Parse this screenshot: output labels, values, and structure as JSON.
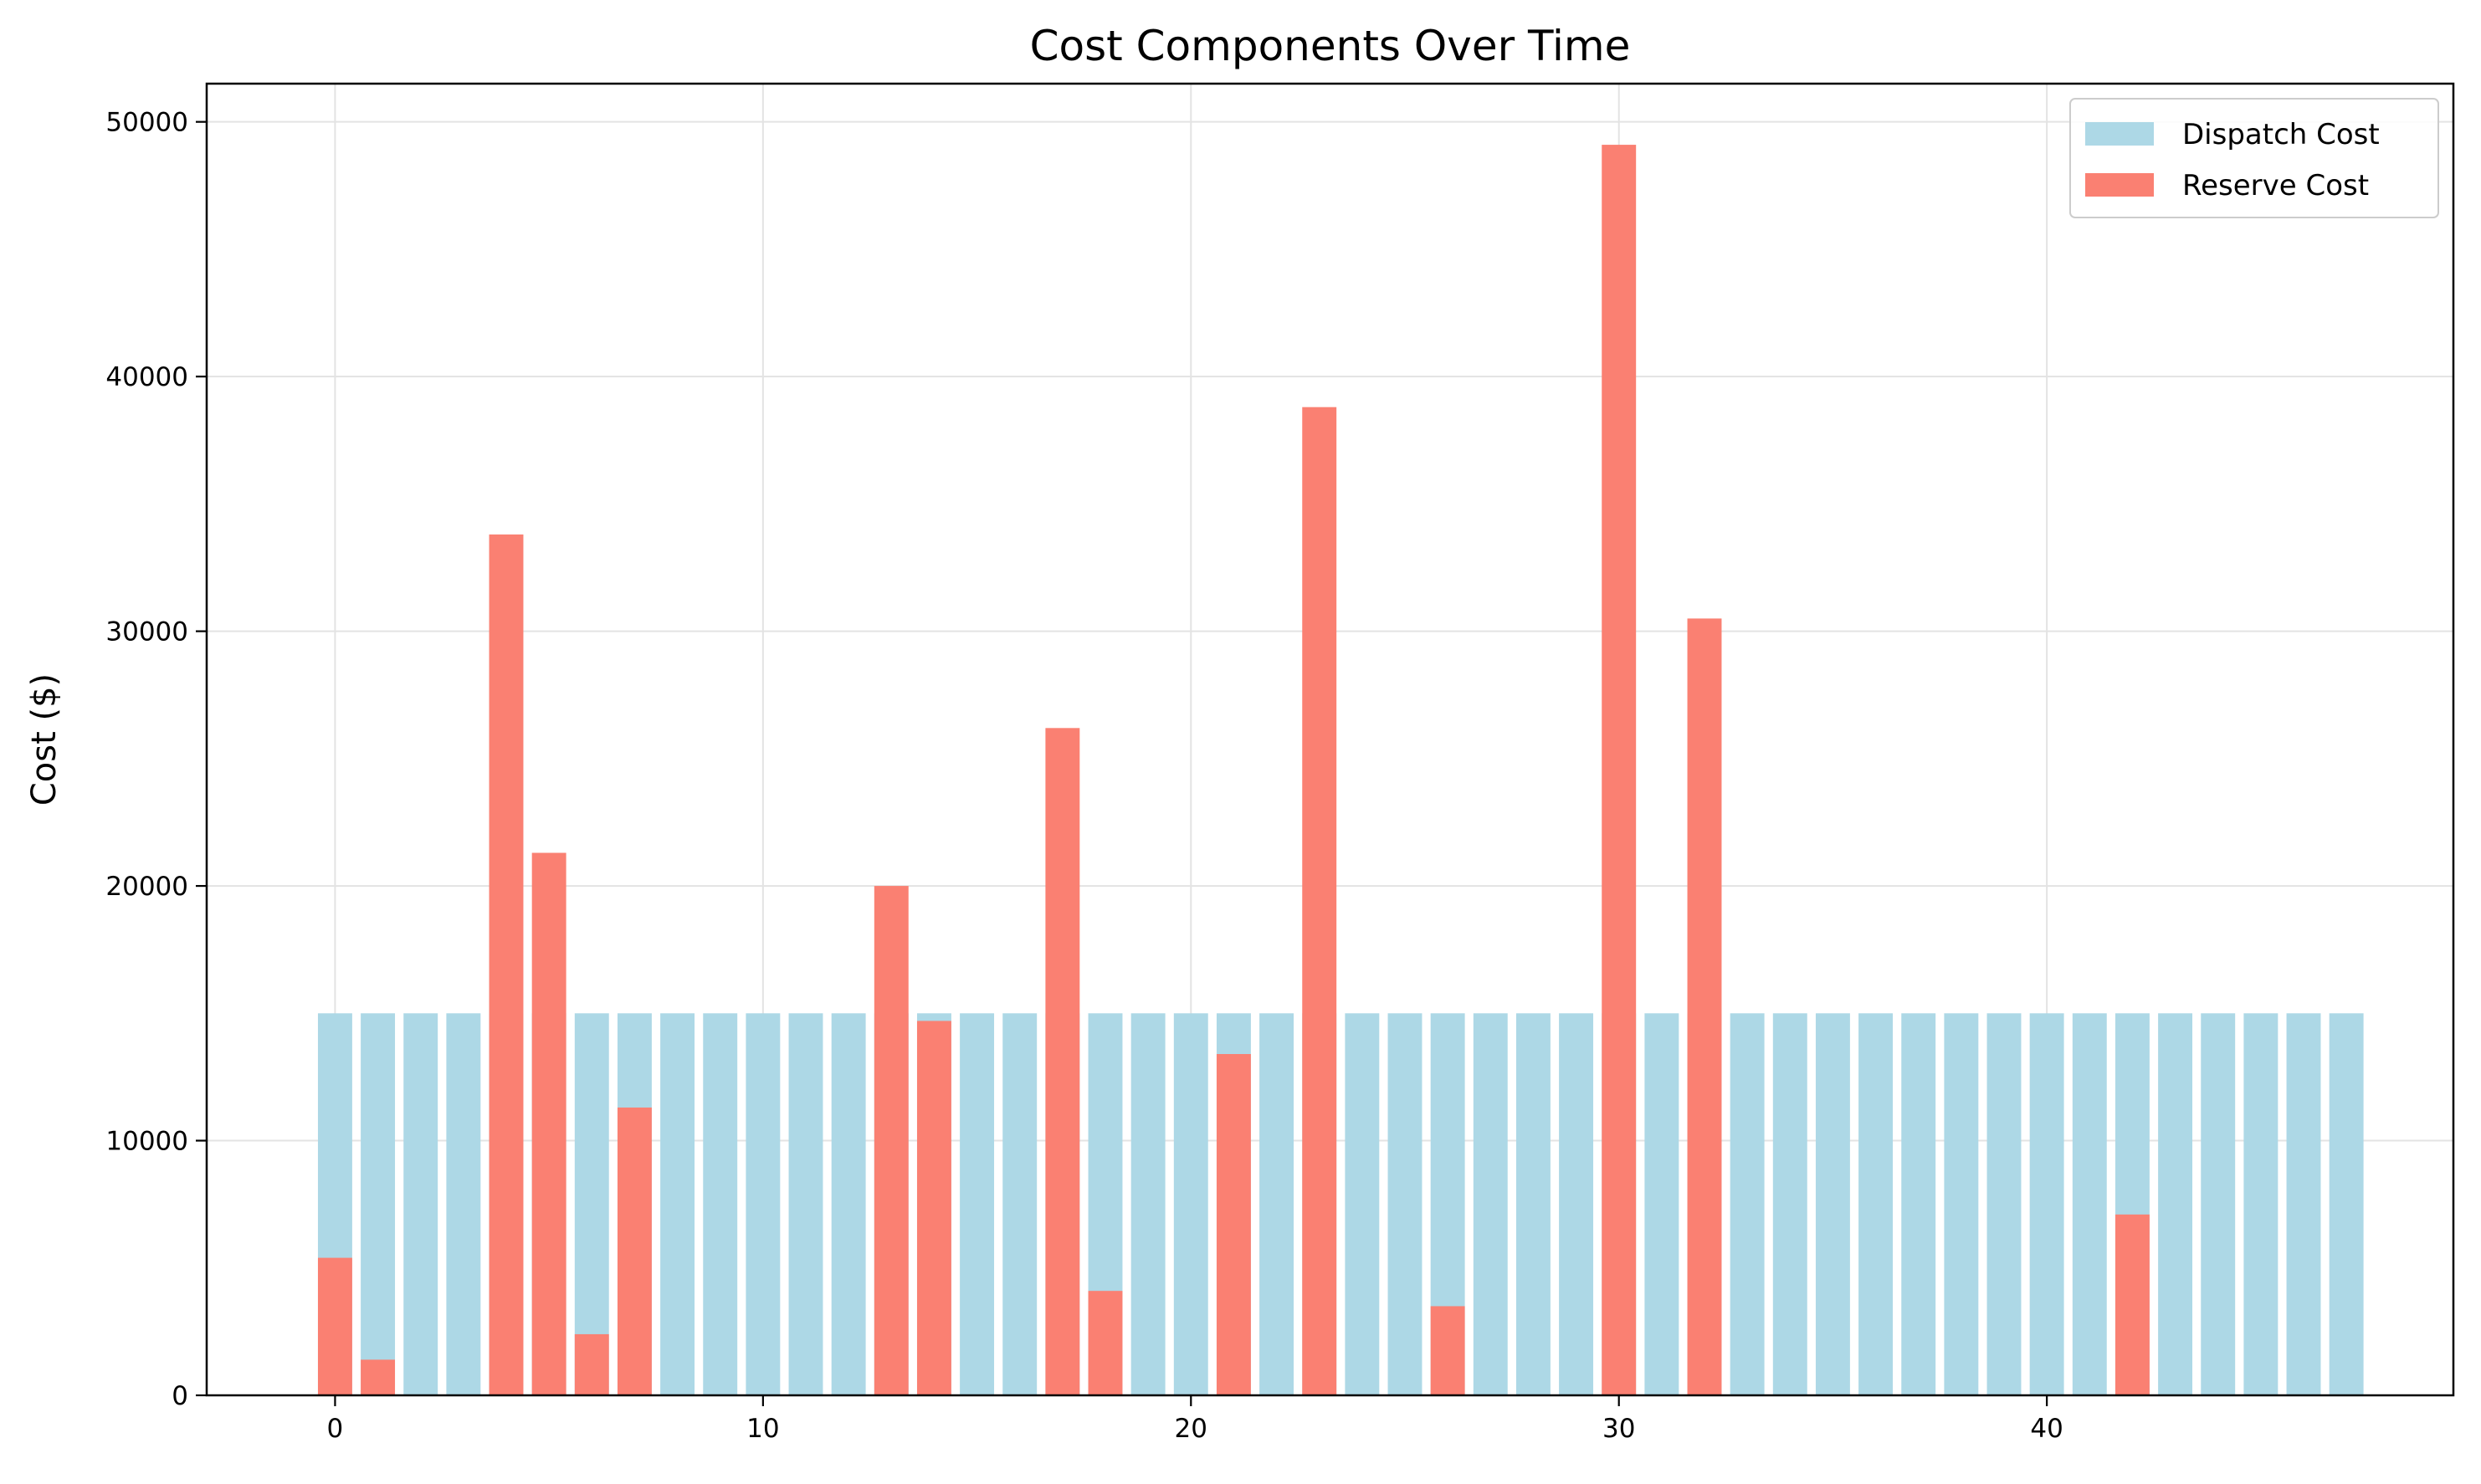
{
  "chart_data": {
    "type": "bar",
    "title": "Cost Components Over Time",
    "xlabel": "",
    "ylabel": "Cost ($)",
    "xlim": [
      -3,
      49.5
    ],
    "ylim": [
      0,
      51500
    ],
    "x_ticks": [
      0,
      10,
      20,
      30,
      40
    ],
    "y_ticks": [
      0,
      10000,
      20000,
      30000,
      40000,
      50000
    ],
    "grid": true,
    "legend_position": "top-right",
    "x": [
      0,
      1,
      2,
      3,
      4,
      5,
      6,
      7,
      8,
      9,
      10,
      11,
      12,
      13,
      14,
      15,
      16,
      17,
      18,
      19,
      20,
      21,
      22,
      23,
      24,
      25,
      26,
      27,
      28,
      29,
      30,
      31,
      32,
      33,
      34,
      35,
      36,
      37,
      38,
      39,
      40,
      41,
      42,
      43,
      44,
      45,
      46,
      47
    ],
    "series": [
      {
        "name": "Dispatch Cost",
        "color": "#add8e6",
        "values": [
          15000,
          15000,
          15000,
          15000,
          15000,
          15000,
          15000,
          15000,
          15000,
          15000,
          15000,
          15000,
          15000,
          15000,
          15000,
          15000,
          15000,
          15000,
          15000,
          15000,
          15000,
          15000,
          15000,
          15000,
          15000,
          15000,
          15000,
          15000,
          15000,
          15000,
          15000,
          15000,
          15000,
          15000,
          15000,
          15000,
          15000,
          15000,
          15000,
          15000,
          15000,
          15000,
          15000,
          15000,
          15000,
          15000,
          15000,
          15000
        ]
      },
      {
        "name": "Reserve Cost",
        "color": "#fa8072",
        "values": [
          5400,
          1400,
          0,
          0,
          33800,
          21300,
          2400,
          11300,
          0,
          0,
          0,
          0,
          0,
          20000,
          14700,
          0,
          0,
          26200,
          4100,
          0,
          0,
          13400,
          0,
          38800,
          0,
          0,
          3500,
          0,
          0,
          0,
          49100,
          0,
          30500,
          0,
          0,
          0,
          0,
          0,
          0,
          0,
          0,
          0,
          7100,
          0,
          0,
          0,
          0,
          0
        ]
      }
    ]
  }
}
